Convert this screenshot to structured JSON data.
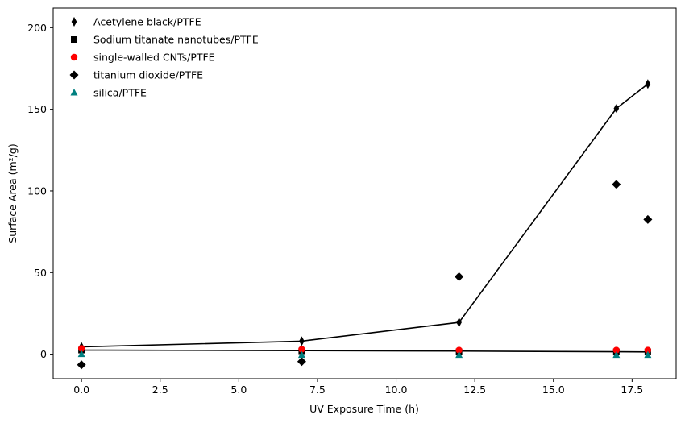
{
  "chart_data": {
    "type": "scatter",
    "xlabel": "UV Exposure Time (h)",
    "ylabel": "Surface Area (m²/g)",
    "xlim": [
      -0.9,
      18.9
    ],
    "ylim": [
      -15,
      212
    ],
    "xticks": [
      0.0,
      2.5,
      5.0,
      7.5,
      10.0,
      12.5,
      15.0,
      17.5
    ],
    "xtick_labels": [
      "0.0",
      "2.5",
      "5.0",
      "7.5",
      "10.0",
      "12.5",
      "15.0",
      "17.5"
    ],
    "yticks": [
      0,
      50,
      100,
      150,
      200
    ],
    "ytick_labels": [
      "0",
      "50",
      "100",
      "150",
      "200"
    ],
    "grid": false,
    "legend_position": "top-left",
    "series": [
      {
        "name": "Acetylene black/PTFE",
        "marker": "thin-diamond",
        "color": "#000000",
        "x": [
          0,
          7,
          12,
          17,
          18
        ],
        "y": [
          4.5,
          8,
          19.5,
          150.5,
          165.5
        ],
        "fit_line": {
          "x": [
            0,
            7,
            12,
            17,
            18
          ],
          "y": [
            4.5,
            8,
            19.5,
            150.5,
            165.5
          ]
        }
      },
      {
        "name": "Sodium titanate nanotubes/PTFE",
        "marker": "square",
        "color": "#000000",
        "x": [
          0,
          7,
          12,
          17,
          18
        ],
        "y": [
          2.5,
          2,
          1.5,
          1.5,
          1.5
        ],
        "fit_line": {
          "x": [
            0,
            7,
            12,
            17,
            18
          ],
          "y": [
            2.5,
            2.2,
            1.9,
            1.5,
            1.4
          ]
        }
      },
      {
        "name": "single-walled CNTs/PTFE",
        "marker": "circle",
        "color": "#ff0000",
        "x": [
          0,
          7,
          12,
          17,
          18
        ],
        "y": [
          3.5,
          3,
          2.5,
          2.5,
          2.5
        ]
      },
      {
        "name": "titanium dioxide/PTFE",
        "marker": "diamond",
        "color": "#000000",
        "x": [
          0,
          7,
          12,
          17,
          18
        ],
        "y": [
          -6.5,
          -4.5,
          47.5,
          104,
          82.5
        ]
      },
      {
        "name": "silica/PTFE",
        "marker": "triangle",
        "color": "#008080",
        "x": [
          0,
          7,
          12,
          17,
          18
        ],
        "y": [
          0,
          -0.5,
          -0.5,
          -0.5,
          -0.5
        ]
      }
    ]
  }
}
